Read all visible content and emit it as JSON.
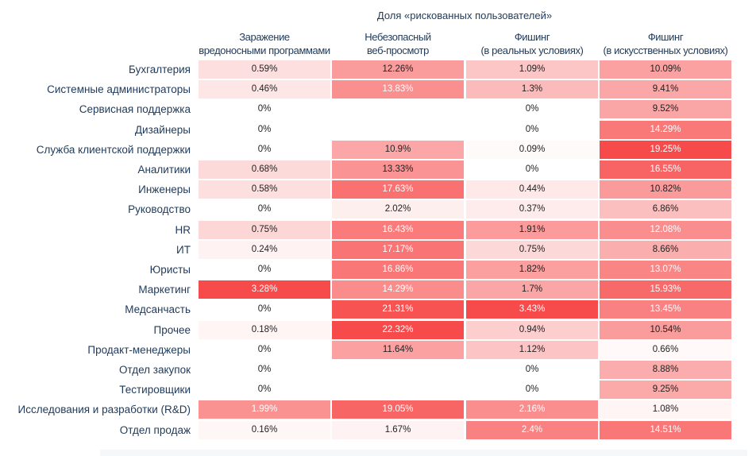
{
  "chart_data": {
    "type": "heatmap",
    "title": "Доля «рискованных пользователей»",
    "columns": [
      [
        "Заражение",
        "вредоносными программами"
      ],
      [
        "Небезопасный",
        "веб-просмотр"
      ],
      [
        "Фишинг",
        "(в реальных условиях)"
      ],
      [
        "Фишинг",
        "(в искусственных условиях)"
      ]
    ],
    "rows": [
      "Бухгалтерия",
      "Системные администраторы",
      "Сервисная поддержка",
      "Дизайнеры",
      "Служба клиентской поддержки",
      "Аналитики",
      "Инженеры",
      "Руководство",
      "HR",
      "ИТ",
      "Юристы",
      "Маркетинг",
      "Медсанчасть",
      "Прочее",
      "Продакт-менеджеры",
      "Отдел закупок",
      "Тестировщики",
      "Исследования и разработки (R&D)",
      "Отдел продаж"
    ],
    "values": [
      [
        0.59,
        12.26,
        1.09,
        10.09
      ],
      [
        0.46,
        13.83,
        1.3,
        9.41
      ],
      [
        0,
        null,
        0,
        9.52
      ],
      [
        0,
        null,
        0,
        14.29
      ],
      [
        0,
        10.9,
        0.09,
        19.25
      ],
      [
        0.68,
        13.33,
        0,
        16.55
      ],
      [
        0.58,
        17.63,
        0.44,
        10.82
      ],
      [
        0,
        2.02,
        0.37,
        6.86
      ],
      [
        0.75,
        16.43,
        1.91,
        12.08
      ],
      [
        0.24,
        17.17,
        0.75,
        8.66
      ],
      [
        0,
        16.86,
        1.82,
        13.07
      ],
      [
        3.28,
        14.29,
        1.7,
        15.93
      ],
      [
        0,
        21.31,
        3.43,
        13.45
      ],
      [
        0.18,
        22.32,
        0.94,
        10.54
      ],
      [
        0,
        11.64,
        1.12,
        0.66
      ],
      [
        0,
        null,
        0,
        8.88
      ],
      [
        0,
        null,
        0,
        9.25
      ],
      [
        1.99,
        19.05,
        2.16,
        1.08
      ],
      [
        0.16,
        1.67,
        2.4,
        14.51
      ]
    ],
    "unit": "%",
    "color_scale": {
      "low": "#ffffff",
      "high": "#f74b4b",
      "normalization": "per-column"
    },
    "label_color": "#1f3a5a"
  }
}
